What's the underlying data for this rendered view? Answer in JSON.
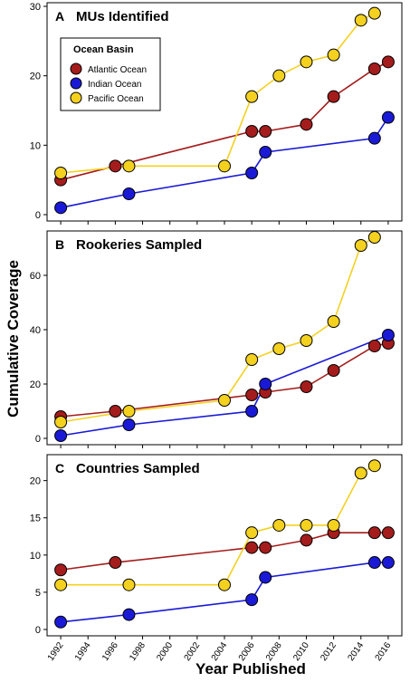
{
  "xlabel": "Year Published",
  "ylabel": "Cumulative Coverage",
  "legend": {
    "title": "Ocean Basin",
    "entries": [
      {
        "label": "Atlantic Ocean",
        "color": "#a51c1c"
      },
      {
        "label": "Indian Ocean",
        "color": "#1a1ad6"
      },
      {
        "label": "Pacific Ocean",
        "color": "#f4d11f"
      }
    ]
  },
  "x_ticks": [
    "1992",
    "1994",
    "1996",
    "1998",
    "2000",
    "2002",
    "2004",
    "2006",
    "2008",
    "2010",
    "2012",
    "2014",
    "2016"
  ],
  "chart_data": [
    {
      "type": "line",
      "letter": "A",
      "title": "MUs Identified",
      "ylim": [
        0,
        30
      ],
      "y_ticks": [
        0,
        10,
        20,
        30
      ],
      "series": [
        {
          "name": "Atlantic Ocean",
          "color": "#a51c1c",
          "x": [
            1992,
            1996,
            2006,
            2007,
            2010,
            2012,
            2015,
            2016
          ],
          "y": [
            5,
            7,
            12,
            12,
            13,
            17,
            21,
            22
          ]
        },
        {
          "name": "Indian Ocean",
          "color": "#1a1ad6",
          "x": [
            1992,
            1997,
            2006,
            2007,
            2015,
            2016
          ],
          "y": [
            1,
            3,
            6,
            9,
            11,
            14
          ]
        },
        {
          "name": "Pacific Ocean",
          "color": "#f4d11f",
          "x": [
            1992,
            1997,
            2004,
            2006,
            2008,
            2010,
            2012,
            2014,
            2015
          ],
          "y": [
            6,
            7,
            7,
            17,
            20,
            22,
            23,
            28,
            29
          ]
        }
      ]
    },
    {
      "type": "line",
      "letter": "B",
      "title": "Rookeries Sampled",
      "ylim": [
        0,
        75
      ],
      "y_ticks": [
        0,
        20,
        40,
        60
      ],
      "series": [
        {
          "name": "Atlantic Ocean",
          "color": "#a51c1c",
          "x": [
            1992,
            1996,
            2006,
            2007,
            2010,
            2012,
            2015,
            2016
          ],
          "y": [
            8,
            10,
            16,
            17,
            19,
            25,
            34,
            35
          ]
        },
        {
          "name": "Indian Ocean",
          "color": "#1a1ad6",
          "x": [
            1992,
            1997,
            2006,
            2007,
            2016
          ],
          "y": [
            1,
            5,
            10,
            20,
            38
          ]
        },
        {
          "name": "Pacific Ocean",
          "color": "#f4d11f",
          "x": [
            1992,
            1997,
            2004,
            2006,
            2008,
            2010,
            2012,
            2014,
            2015
          ],
          "y": [
            6,
            10,
            14,
            29,
            33,
            36,
            43,
            71,
            74
          ]
        }
      ]
    },
    {
      "type": "line",
      "letter": "C",
      "title": "Countries Sampled",
      "ylim": [
        0,
        23
      ],
      "y_ticks": [
        0,
        5,
        10,
        15,
        20
      ],
      "series": [
        {
          "name": "Atlantic Ocean",
          "color": "#a51c1c",
          "x": [
            1992,
            1996,
            2006,
            2007,
            2010,
            2012,
            2015,
            2016
          ],
          "y": [
            8,
            9,
            11,
            11,
            12,
            13,
            13,
            13
          ]
        },
        {
          "name": "Indian Ocean",
          "color": "#1a1ad6",
          "x": [
            1992,
            1997,
            2006,
            2007,
            2015,
            2016
          ],
          "y": [
            1,
            2,
            4,
            7,
            9,
            9
          ]
        },
        {
          "name": "Pacific Ocean",
          "color": "#f4d11f",
          "x": [
            1992,
            1997,
            2004,
            2006,
            2008,
            2010,
            2012,
            2014,
            2015
          ],
          "y": [
            6,
            6,
            6,
            13,
            14,
            14,
            14,
            21,
            22
          ]
        }
      ]
    }
  ]
}
